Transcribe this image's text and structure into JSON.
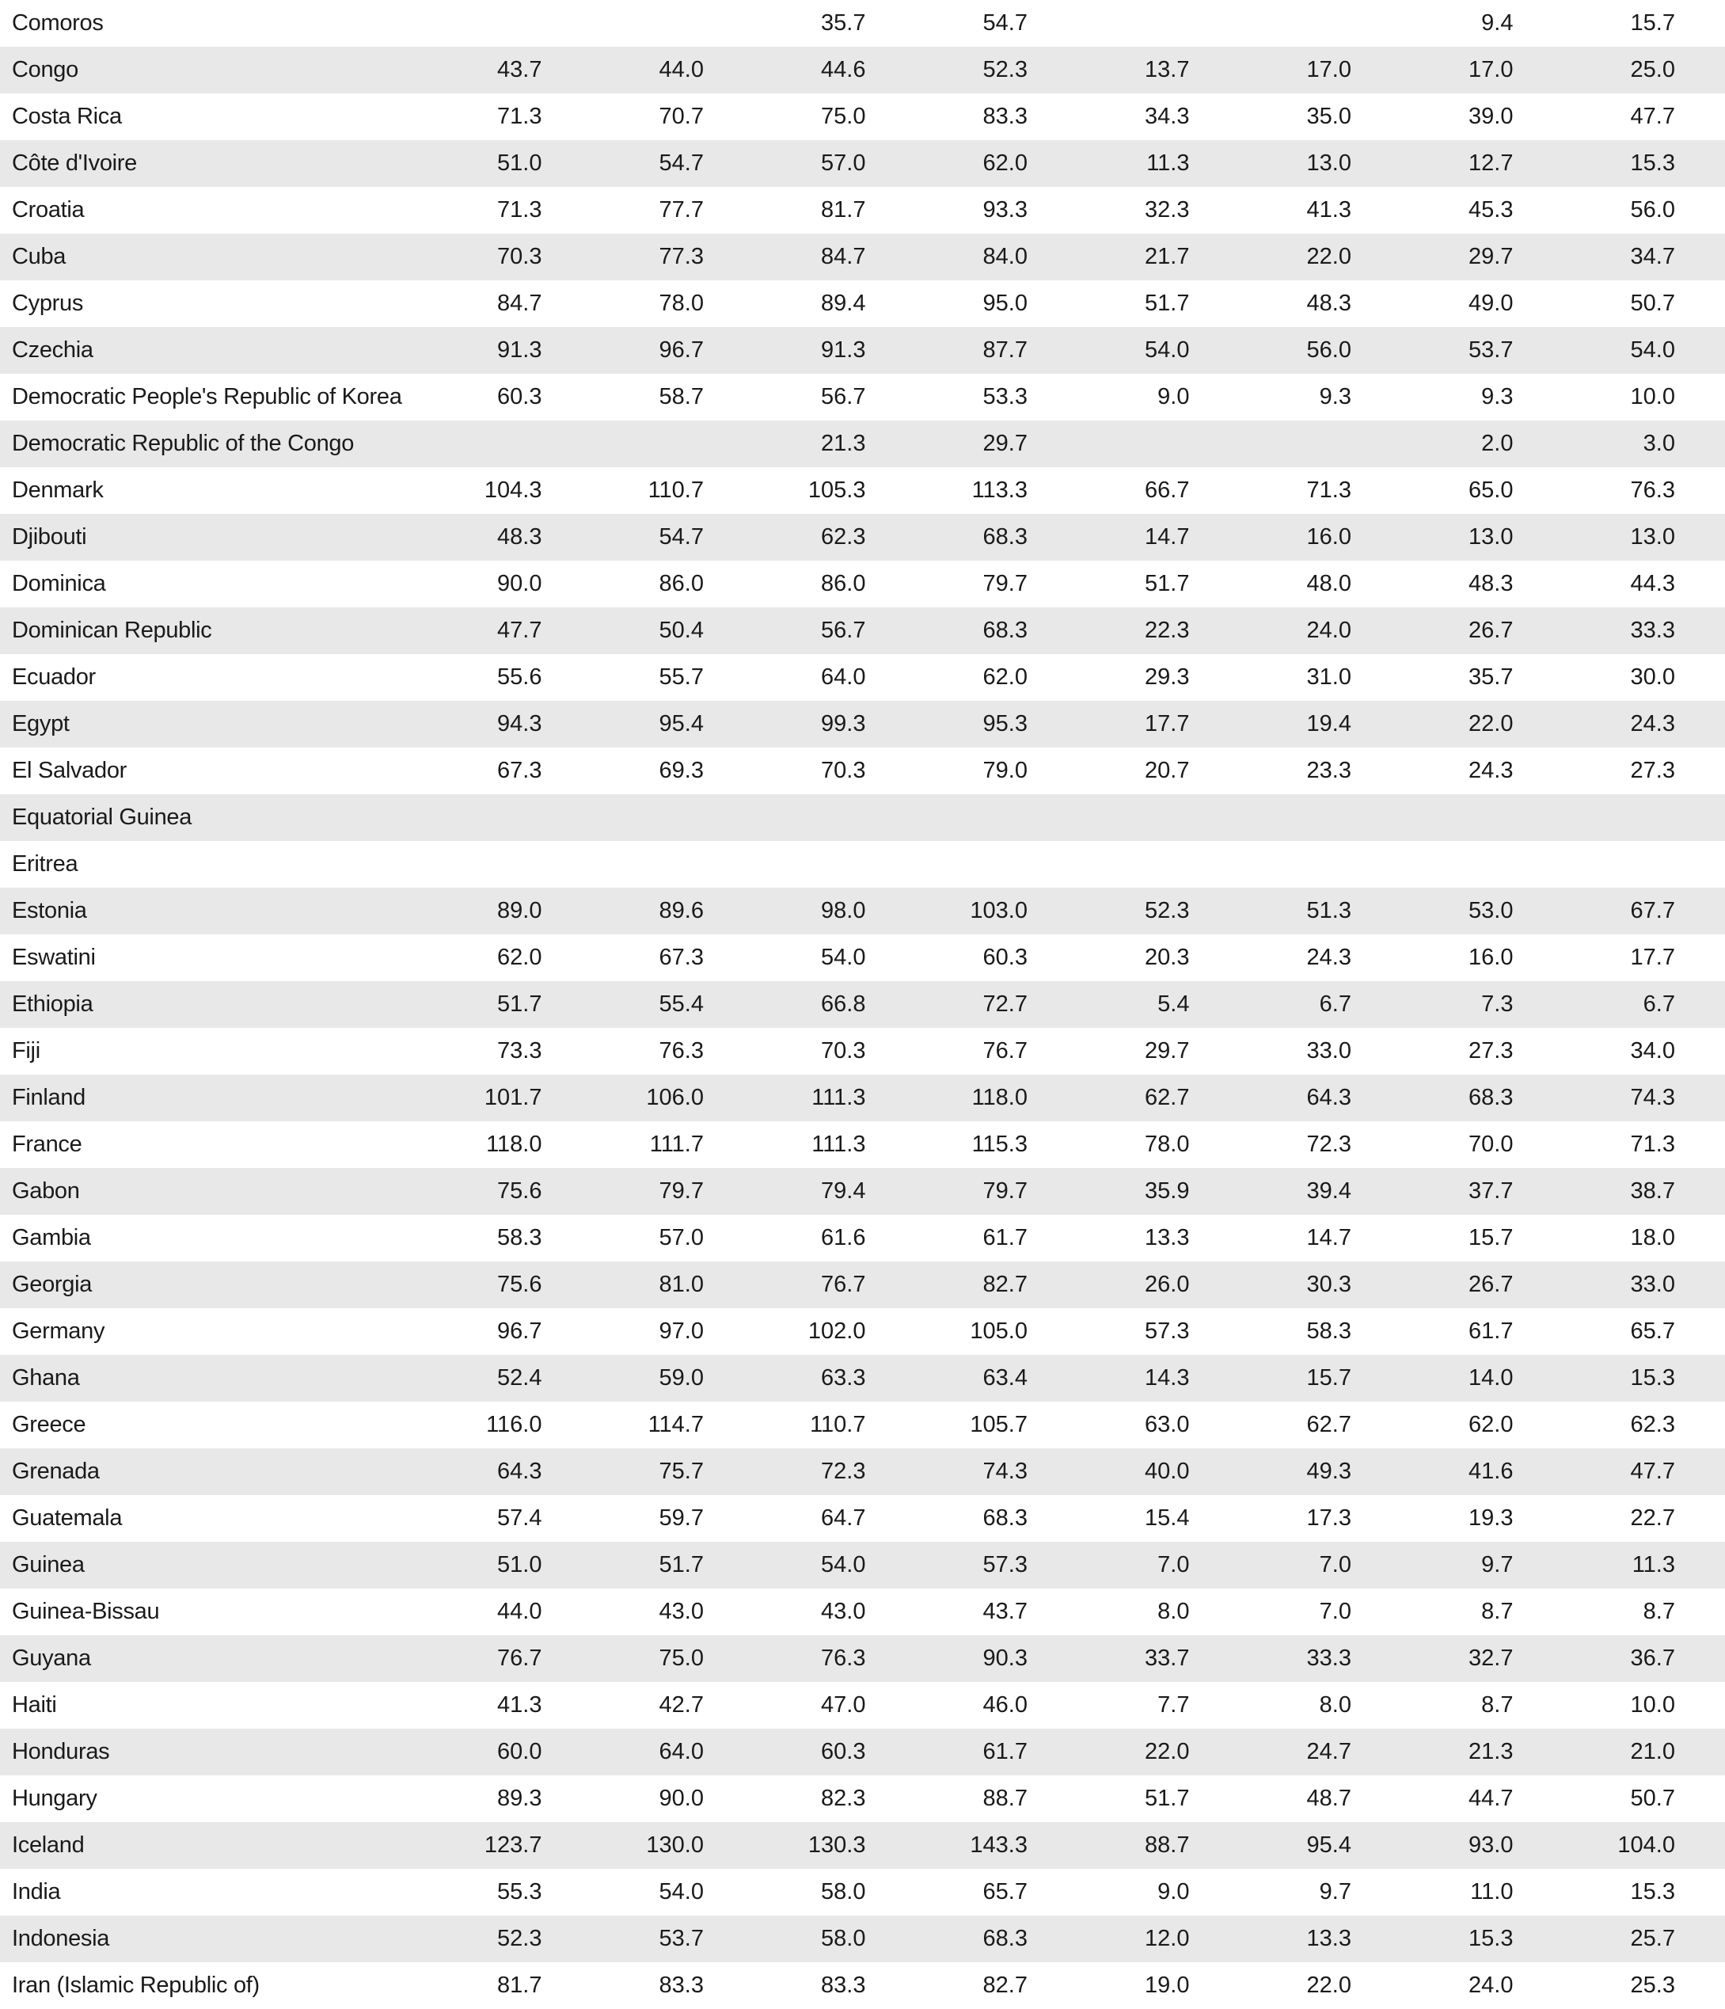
{
  "table": {
    "rows": [
      [
        "Comoros",
        null,
        null,
        "35.7",
        "54.7",
        null,
        null,
        "9.4",
        "15.7"
      ],
      [
        "Congo",
        "43.7",
        "44.0",
        "44.6",
        "52.3",
        "13.7",
        "17.0",
        "17.0",
        "25.0"
      ],
      [
        "Costa Rica",
        "71.3",
        "70.7",
        "75.0",
        "83.3",
        "34.3",
        "35.0",
        "39.0",
        "47.7"
      ],
      [
        "Côte d'Ivoire",
        "51.0",
        "54.7",
        "57.0",
        "62.0",
        "11.3",
        "13.0",
        "12.7",
        "15.3"
      ],
      [
        "Croatia",
        "71.3",
        "77.7",
        "81.7",
        "93.3",
        "32.3",
        "41.3",
        "45.3",
        "56.0"
      ],
      [
        "Cuba",
        "70.3",
        "77.3",
        "84.7",
        "84.0",
        "21.7",
        "22.0",
        "29.7",
        "34.7"
      ],
      [
        "Cyprus",
        "84.7",
        "78.0",
        "89.4",
        "95.0",
        "51.7",
        "48.3",
        "49.0",
        "50.7"
      ],
      [
        "Czechia",
        "91.3",
        "96.7",
        "91.3",
        "87.7",
        "54.0",
        "56.0",
        "53.7",
        "54.0"
      ],
      [
        "Democratic People's Republic of Korea",
        "60.3",
        "58.7",
        "56.7",
        "53.3",
        "9.0",
        "9.3",
        "9.3",
        "10.0"
      ],
      [
        "Democratic Republic of the Congo",
        null,
        null,
        "21.3",
        "29.7",
        null,
        null,
        "2.0",
        "3.0"
      ],
      [
        "Denmark",
        "104.3",
        "110.7",
        "105.3",
        "113.3",
        "66.7",
        "71.3",
        "65.0",
        "76.3"
      ],
      [
        "Djibouti",
        "48.3",
        "54.7",
        "62.3",
        "68.3",
        "14.7",
        "16.0",
        "13.0",
        "13.0"
      ],
      [
        "Dominica",
        "90.0",
        "86.0",
        "86.0",
        "79.7",
        "51.7",
        "48.0",
        "48.3",
        "44.3"
      ],
      [
        "Dominican Republic",
        "47.7",
        "50.4",
        "56.7",
        "68.3",
        "22.3",
        "24.0",
        "26.7",
        "33.3"
      ],
      [
        "Ecuador",
        "55.6",
        "55.7",
        "64.0",
        "62.0",
        "29.3",
        "31.0",
        "35.7",
        "30.0"
      ],
      [
        "Egypt",
        "94.3",
        "95.4",
        "99.3",
        "95.3",
        "17.7",
        "19.4",
        "22.0",
        "24.3"
      ],
      [
        "El Salvador",
        "67.3",
        "69.3",
        "70.3",
        "79.0",
        "20.7",
        "23.3",
        "24.3",
        "27.3"
      ],
      [
        "Equatorial Guinea",
        null,
        null,
        null,
        null,
        null,
        null,
        null,
        null
      ],
      [
        "Eritrea",
        null,
        null,
        null,
        null,
        null,
        null,
        null,
        null
      ],
      [
        "Estonia",
        "89.0",
        "89.6",
        "98.0",
        "103.0",
        "52.3",
        "51.3",
        "53.0",
        "67.7"
      ],
      [
        "Eswatini",
        "62.0",
        "67.3",
        "54.0",
        "60.3",
        "20.3",
        "24.3",
        "16.0",
        "17.7"
      ],
      [
        "Ethiopia",
        "51.7",
        "55.4",
        "66.8",
        "72.7",
        "5.4",
        "6.7",
        "7.3",
        "6.7"
      ],
      [
        "Fiji",
        "73.3",
        "76.3",
        "70.3",
        "76.7",
        "29.7",
        "33.0",
        "27.3",
        "34.0"
      ],
      [
        "Finland",
        "101.7",
        "106.0",
        "111.3",
        "118.0",
        "62.7",
        "64.3",
        "68.3",
        "74.3"
      ],
      [
        "France",
        "118.0",
        "111.7",
        "111.3",
        "115.3",
        "78.0",
        "72.3",
        "70.0",
        "71.3"
      ],
      [
        "Gabon",
        "75.6",
        "79.7",
        "79.4",
        "79.7",
        "35.9",
        "39.4",
        "37.7",
        "38.7"
      ],
      [
        "Gambia",
        "58.3",
        "57.0",
        "61.6",
        "61.7",
        "13.3",
        "14.7",
        "15.7",
        "18.0"
      ],
      [
        "Georgia",
        "75.6",
        "81.0",
        "76.7",
        "82.7",
        "26.0",
        "30.3",
        "26.7",
        "33.0"
      ],
      [
        "Germany",
        "96.7",
        "97.0",
        "102.0",
        "105.0",
        "57.3",
        "58.3",
        "61.7",
        "65.7"
      ],
      [
        "Ghana",
        "52.4",
        "59.0",
        "63.3",
        "63.4",
        "14.3",
        "15.7",
        "14.0",
        "15.3"
      ],
      [
        "Greece",
        "116.0",
        "114.7",
        "110.7",
        "105.7",
        "63.0",
        "62.7",
        "62.0",
        "62.3"
      ],
      [
        "Grenada",
        "64.3",
        "75.7",
        "72.3",
        "74.3",
        "40.0",
        "49.3",
        "41.6",
        "47.7"
      ],
      [
        "Guatemala",
        "57.4",
        "59.7",
        "64.7",
        "68.3",
        "15.4",
        "17.3",
        "19.3",
        "22.7"
      ],
      [
        "Guinea",
        "51.0",
        "51.7",
        "54.0",
        "57.3",
        "7.0",
        "7.0",
        "9.7",
        "11.3"
      ],
      [
        "Guinea-Bissau",
        "44.0",
        "43.0",
        "43.0",
        "43.7",
        "8.0",
        "7.0",
        "8.7",
        "8.7"
      ],
      [
        "Guyana",
        "76.7",
        "75.0",
        "76.3",
        "90.3",
        "33.7",
        "33.3",
        "32.7",
        "36.7"
      ],
      [
        "Haiti",
        "41.3",
        "42.7",
        "47.0",
        "46.0",
        "7.7",
        "8.0",
        "8.7",
        "10.0"
      ],
      [
        "Honduras",
        "60.0",
        "64.0",
        "60.3",
        "61.7",
        "22.0",
        "24.7",
        "21.3",
        "21.0"
      ],
      [
        "Hungary",
        "89.3",
        "90.0",
        "82.3",
        "88.7",
        "51.7",
        "48.7",
        "44.7",
        "50.7"
      ],
      [
        "Iceland",
        "123.7",
        "130.0",
        "130.3",
        "143.3",
        "88.7",
        "95.4",
        "93.0",
        "104.0"
      ],
      [
        "India",
        "55.3",
        "54.0",
        "58.0",
        "65.7",
        "9.0",
        "9.7",
        "11.0",
        "15.3"
      ],
      [
        "Indonesia",
        "52.3",
        "53.7",
        "58.0",
        "68.3",
        "12.0",
        "13.3",
        "15.3",
        "25.7"
      ],
      [
        "Iran (Islamic Republic of)",
        "81.7",
        "83.3",
        "83.3",
        "82.7",
        "19.0",
        "22.0",
        "24.0",
        "25.3"
      ]
    ]
  }
}
